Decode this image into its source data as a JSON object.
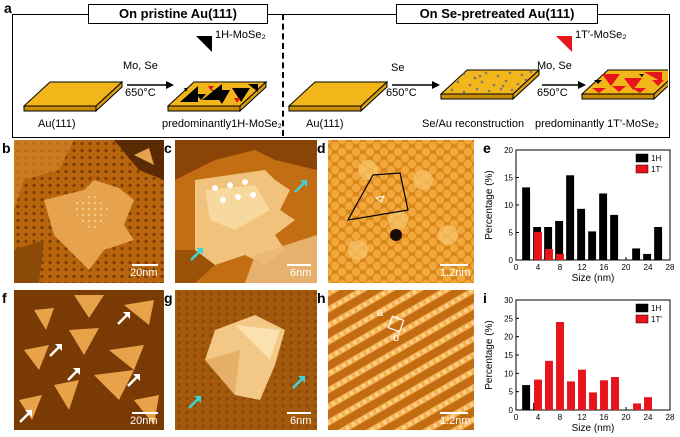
{
  "panel_a": {
    "letter": "a",
    "left_title": "On pristine Au(111)",
    "right_title": "On Se-pretreated Au(111)",
    "legend_1h": "1H-MoSe₂",
    "legend_1t": "1T′-MoSe₂",
    "left_arrow_top": "Mo, Se",
    "left_arrow_bottom": "650°C",
    "left_sub_au": "Au(111)",
    "left_sub_product": "predominantly1H-MoSe₂",
    "mid_arrow_top": "Se",
    "mid_arrow_bottom": "650°C",
    "right_arrow_top": "Mo, Se",
    "right_arrow_bottom": "650°C",
    "right_sub_au": "Au(111)",
    "right_sub_recon": "Se/Au reconstruction",
    "right_sub_product": "predominantly 1T′-MoSe₂"
  },
  "stm_panels": [
    {
      "letter": "b",
      "scale": "20nm"
    },
    {
      "letter": "c",
      "scale": "6nm"
    },
    {
      "letter": "d",
      "scale": "1.2nm"
    },
    {
      "letter": "f",
      "scale": "20nm"
    },
    {
      "letter": "g",
      "scale": "6nm"
    },
    {
      "letter": "h",
      "scale": "1.2nm",
      "cell_a": "a",
      "cell_b": "b"
    }
  ],
  "colors": {
    "gold": "#f2b61b",
    "red": "#e8141b",
    "black": "#000000",
    "cyan": "#3fd3d8"
  },
  "chart_data": [
    {
      "letter": "e",
      "type": "bar",
      "xlabel": "Size (nm)",
      "ylabel": "Percentage (%)",
      "xlim": [
        0,
        28
      ],
      "ylim": [
        0,
        20
      ],
      "xticks": [
        0,
        4,
        8,
        12,
        16,
        20,
        24,
        28
      ],
      "yticks": [
        0,
        5,
        10,
        15,
        20
      ],
      "series": [
        {
          "name": "1H",
          "color": "#000000",
          "x": [
            2,
            4,
            6,
            8,
            10,
            12,
            14,
            16,
            18,
            22,
            24,
            26
          ],
          "values": [
            13.2,
            6.0,
            6.0,
            7.1,
            15.4,
            9.3,
            5.2,
            12.1,
            8.2,
            2.1,
            1.1,
            6.0
          ]
        },
        {
          "name": "1T'",
          "color": "#e8141b",
          "x": [
            4,
            6,
            8
          ],
          "values": [
            5.1,
            2.0,
            1.1
          ]
        }
      ]
    },
    {
      "letter": "i",
      "type": "bar",
      "xlabel": "Size (nm)",
      "ylabel": "Percentage (%)",
      "xlim": [
        0,
        28
      ],
      "ylim": [
        0,
        30
      ],
      "xticks": [
        0,
        4,
        8,
        12,
        16,
        20,
        24,
        28
      ],
      "yticks": [
        0,
        5,
        10,
        15,
        20,
        25,
        30
      ],
      "series": [
        {
          "name": "1H",
          "color": "#000000",
          "x": [
            2,
            4
          ],
          "values": [
            6.8,
            2.0
          ]
        },
        {
          "name": "1T'",
          "color": "#e8141b",
          "x": [
            4,
            6,
            8,
            10,
            12,
            14,
            16,
            18,
            22,
            24
          ],
          "values": [
            8.3,
            13.4,
            24.0,
            7.8,
            11.0,
            4.8,
            8.1,
            9.0,
            1.8,
            3.5
          ]
        }
      ]
    }
  ]
}
